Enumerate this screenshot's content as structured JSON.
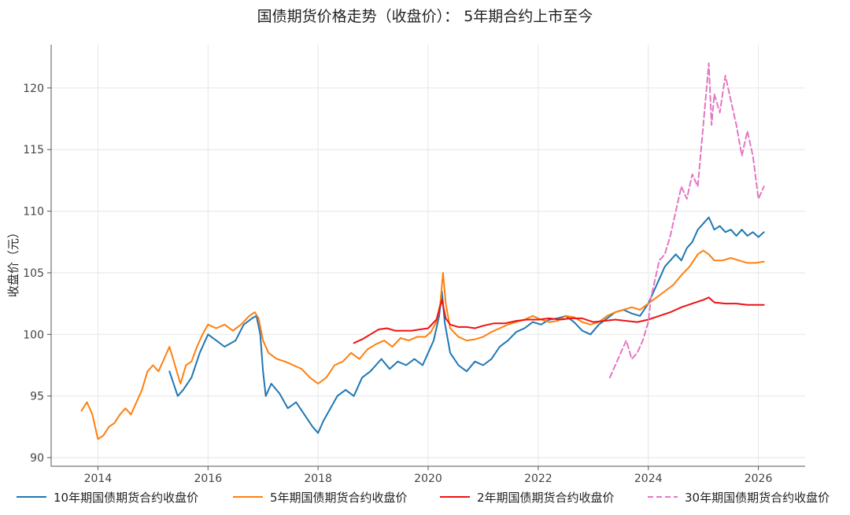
{
  "title": "国债期货价格走势（收盘价）： 5年期合约上市至今",
  "chart_data": {
    "type": "line",
    "title": "国债期货价格走势（收盘价）： 5年期合约上市至今",
    "xlabel": "",
    "ylabel": "收盘价（元）",
    "xlim": [
      2013.15,
      2026.85
    ],
    "ylim": [
      89.3,
      123.5
    ],
    "x_ticks": [
      2014,
      2016,
      2018,
      2020,
      2022,
      2024,
      2026
    ],
    "x_tick_labels": [
      "2014",
      "2016",
      "2018",
      "2020",
      "2022",
      "2024",
      "2026"
    ],
    "y_ticks": [
      90,
      95,
      100,
      105,
      110,
      115,
      120
    ],
    "y_tick_labels": [
      "90",
      "95",
      "100",
      "105",
      "110",
      "115",
      "120"
    ],
    "grid": true,
    "legend_position": "bottom",
    "series": [
      {
        "name": "10年期国债期货合约收盘价",
        "color": "#1f77b4",
        "dash": "solid",
        "x": [
          2015.3,
          2015.45,
          2015.55,
          2015.7,
          2015.85,
          2016.0,
          2016.15,
          2016.3,
          2016.5,
          2016.65,
          2016.8,
          2016.88,
          2016.95,
          2017.0,
          2017.05,
          2017.15,
          2017.3,
          2017.45,
          2017.6,
          2017.75,
          2017.9,
          2018.0,
          2018.1,
          2018.2,
          2018.35,
          2018.5,
          2018.65,
          2018.8,
          2018.95,
          2019.05,
          2019.15,
          2019.3,
          2019.45,
          2019.6,
          2019.75,
          2019.9,
          2020.0,
          2020.1,
          2020.2,
          2020.25,
          2020.3,
          2020.4,
          2020.55,
          2020.7,
          2020.85,
          2021.0,
          2021.15,
          2021.3,
          2021.45,
          2021.6,
          2021.75,
          2021.9,
          2022.05,
          2022.2,
          2022.35,
          2022.5,
          2022.65,
          2022.8,
          2022.95,
          2023.1,
          2023.25,
          2023.4,
          2023.55,
          2023.7,
          2023.85,
          2024.0,
          2024.1,
          2024.2,
          2024.3,
          2024.4,
          2024.5,
          2024.6,
          2024.7,
          2024.8,
          2024.9,
          2025.0,
          2025.1,
          2025.2,
          2025.3,
          2025.4,
          2025.5,
          2025.6,
          2025.7,
          2025.8,
          2025.9,
          2026.0,
          2026.1
        ],
        "y": [
          97.0,
          95.0,
          95.5,
          96.5,
          98.5,
          100.0,
          99.5,
          99.0,
          99.5,
          100.8,
          101.3,
          101.5,
          100.0,
          97.0,
          95.0,
          96.0,
          95.2,
          94.0,
          94.5,
          93.5,
          92.5,
          92.0,
          93.0,
          93.8,
          95.0,
          95.5,
          95.0,
          96.5,
          97.0,
          97.5,
          98.0,
          97.2,
          97.8,
          97.5,
          98.0,
          97.5,
          98.5,
          99.5,
          101.5,
          103.5,
          101.0,
          98.5,
          97.5,
          97.0,
          97.8,
          97.5,
          98.0,
          99.0,
          99.5,
          100.2,
          100.5,
          101.0,
          100.8,
          101.2,
          101.3,
          101.5,
          101.0,
          100.3,
          100.0,
          100.8,
          101.3,
          101.8,
          102.0,
          101.7,
          101.5,
          102.5,
          103.5,
          104.5,
          105.5,
          106.0,
          106.5,
          106.0,
          107.0,
          107.5,
          108.5,
          109.0,
          109.5,
          108.5,
          108.8,
          108.3,
          108.5,
          108.0,
          108.5,
          108.0,
          108.3,
          107.9,
          108.3
        ]
      },
      {
        "name": "5年期国债期货合约收盘价",
        "color": "#ff7f0e",
        "dash": "solid",
        "x": [
          2013.7,
          2013.8,
          2013.9,
          2014.0,
          2014.1,
          2014.2,
          2014.3,
          2014.4,
          2014.5,
          2014.6,
          2014.7,
          2014.8,
          2014.9,
          2015.0,
          2015.1,
          2015.2,
          2015.3,
          2015.4,
          2015.5,
          2015.6,
          2015.7,
          2015.8,
          2015.9,
          2016.0,
          2016.15,
          2016.3,
          2016.45,
          2016.6,
          2016.75,
          2016.85,
          2016.92,
          2017.0,
          2017.1,
          2017.25,
          2017.4,
          2017.55,
          2017.7,
          2017.85,
          2018.0,
          2018.15,
          2018.3,
          2018.45,
          2018.6,
          2018.75,
          2018.9,
          2019.05,
          2019.2,
          2019.35,
          2019.5,
          2019.65,
          2019.8,
          2019.95,
          2020.05,
          2020.15,
          2020.22,
          2020.27,
          2020.32,
          2020.4,
          2020.55,
          2020.7,
          2020.85,
          2021.0,
          2021.15,
          2021.3,
          2021.45,
          2021.6,
          2021.75,
          2021.9,
          2022.05,
          2022.2,
          2022.35,
          2022.5,
          2022.65,
          2022.8,
          2022.95,
          2023.1,
          2023.25,
          2023.4,
          2023.55,
          2023.7,
          2023.85,
          2024.0,
          2024.15,
          2024.3,
          2024.45,
          2024.6,
          2024.75,
          2024.9,
          2025.0,
          2025.1,
          2025.2,
          2025.35,
          2025.5,
          2025.65,
          2025.8,
          2025.95,
          2026.1
        ],
        "y": [
          93.8,
          94.5,
          93.5,
          91.5,
          91.8,
          92.5,
          92.8,
          93.5,
          94.0,
          93.5,
          94.5,
          95.5,
          97.0,
          97.5,
          97.0,
          98.0,
          99.0,
          97.5,
          96.0,
          97.5,
          97.8,
          99.0,
          100.0,
          100.8,
          100.5,
          100.8,
          100.3,
          100.8,
          101.5,
          101.8,
          101.3,
          99.5,
          98.5,
          98.0,
          97.8,
          97.5,
          97.2,
          96.5,
          96.0,
          96.5,
          97.5,
          97.8,
          98.5,
          98.0,
          98.8,
          99.2,
          99.5,
          99.0,
          99.7,
          99.5,
          99.8,
          99.8,
          100.2,
          101.0,
          102.5,
          105.0,
          102.5,
          100.5,
          99.8,
          99.5,
          99.6,
          99.8,
          100.2,
          100.5,
          100.8,
          101.0,
          101.2,
          101.5,
          101.2,
          101.0,
          101.1,
          101.5,
          101.4,
          101.0,
          100.8,
          101.0,
          101.5,
          101.8,
          102.0,
          102.2,
          102.0,
          102.5,
          103.0,
          103.5,
          104.0,
          104.8,
          105.5,
          106.5,
          106.8,
          106.5,
          106.0,
          106.0,
          106.2,
          106.0,
          105.8,
          105.8,
          105.9
        ]
      },
      {
        "name": "2年期国债期货合约收盘价",
        "color": "#ee1111",
        "dash": "solid",
        "x": [
          2018.65,
          2018.8,
          2018.95,
          2019.1,
          2019.25,
          2019.4,
          2019.55,
          2019.7,
          2019.85,
          2020.0,
          2020.15,
          2020.25,
          2020.32,
          2020.4,
          2020.55,
          2020.7,
          2020.85,
          2021.0,
          2021.2,
          2021.4,
          2021.6,
          2021.8,
          2022.0,
          2022.2,
          2022.4,
          2022.6,
          2022.8,
          2023.0,
          2023.2,
          2023.4,
          2023.6,
          2023.8,
          2024.0,
          2024.2,
          2024.4,
          2024.6,
          2024.8,
          2025.0,
          2025.1,
          2025.2,
          2025.4,
          2025.6,
          2025.8,
          2026.0,
          2026.1
        ],
        "y": [
          99.3,
          99.6,
          100.0,
          100.4,
          100.5,
          100.3,
          100.3,
          100.3,
          100.4,
          100.5,
          101.2,
          102.8,
          101.3,
          100.8,
          100.6,
          100.6,
          100.5,
          100.7,
          100.9,
          100.9,
          101.1,
          101.2,
          101.2,
          101.3,
          101.2,
          101.3,
          101.3,
          101.0,
          101.1,
          101.2,
          101.1,
          101.0,
          101.2,
          101.5,
          101.8,
          102.2,
          102.5,
          102.8,
          103.0,
          102.6,
          102.5,
          102.5,
          102.4,
          102.4,
          102.4
        ]
      },
      {
        "name": "30年期国债期货合约收盘价",
        "color": "#e377c2",
        "dash": "dashed",
        "x": [
          2023.3,
          2023.4,
          2023.5,
          2023.6,
          2023.7,
          2023.8,
          2023.9,
          2024.0,
          2024.05,
          2024.1,
          2024.2,
          2024.3,
          2024.4,
          2024.5,
          2024.6,
          2024.7,
          2024.8,
          2024.9,
          2024.95,
          2025.0,
          2025.05,
          2025.1,
          2025.15,
          2025.2,
          2025.3,
          2025.4,
          2025.5,
          2025.6,
          2025.7,
          2025.8,
          2025.9,
          2026.0,
          2026.1
        ],
        "y": [
          96.5,
          97.5,
          98.5,
          99.5,
          98.0,
          98.5,
          99.5,
          101.0,
          103.0,
          104.0,
          106.0,
          106.5,
          108.0,
          110.0,
          112.0,
          111.0,
          113.0,
          112.0,
          114.5,
          117.0,
          119.5,
          122.0,
          117.0,
          119.5,
          118.0,
          121.0,
          119.0,
          117.0,
          114.5,
          116.5,
          114.5,
          111.0,
          112.0
        ]
      }
    ]
  }
}
